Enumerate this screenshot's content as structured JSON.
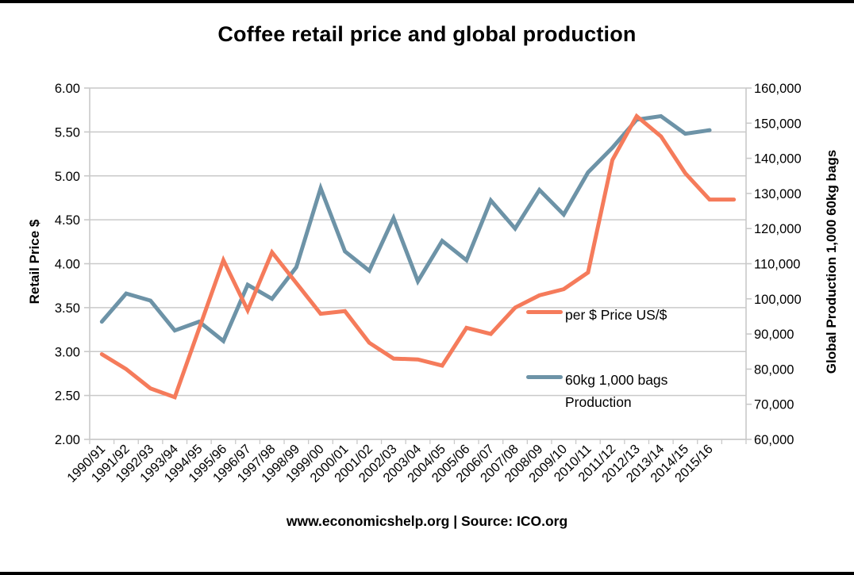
{
  "title": "Coffee retail price and global production",
  "footer": "www.economicshelp.org | Source: ICO.org",
  "colors": {
    "price_line": "#F57B5B",
    "production_line": "#6D93A7",
    "gridline": "#C9C9C9",
    "text": "#000000",
    "background": "#FFFFFF",
    "frame_border": "#000000"
  },
  "left_axis": {
    "title": "Retail Price $",
    "tick_labels": [
      "6.00",
      "5.50",
      "5.00",
      "4.50",
      "4.00",
      "3.50",
      "3.00",
      "2.50",
      "2.00"
    ],
    "min": 2.0,
    "max": 6.0,
    "step": 0.5
  },
  "right_axis": {
    "title": "Global Production 1,000 60kg bags",
    "tick_labels": [
      "160,000",
      "150,000",
      "140,000",
      "130,000",
      "120,000",
      "110,000",
      "100,000",
      "90,000",
      "80,000",
      "70,000",
      "60,000"
    ],
    "min": 60000,
    "max": 160000,
    "step": 10000
  },
  "legend": {
    "price": {
      "label": "per $ Price US/$",
      "color": "#F57B5B"
    },
    "production": {
      "label_line1": "60kg 1,000 bags",
      "label_line2": "Production",
      "color": "#6D93A7"
    }
  },
  "chart_data": {
    "type": "line",
    "title": "Coffee retail price and global production",
    "categories": [
      "1990/91",
      "1991/92",
      "1992/93",
      "1993/94",
      "1994/95",
      "1995/96",
      "1996/97",
      "1997/98",
      "1998/99",
      "1999/00",
      "2000/01",
      "2001/02",
      "2002/03",
      "2003/04",
      "2004/05",
      "2005/06",
      "2006/07",
      "2007/08",
      "2008/09",
      "2009/10",
      "2010/11",
      "2011/12",
      "2012/13",
      "2013/14",
      "2014/15",
      "2015/16"
    ],
    "series": [
      {
        "name": "per $ Price US/$",
        "axis": "left",
        "color": "#F57B5B",
        "values": [
          2.97,
          2.8,
          2.58,
          2.48,
          3.26,
          4.04,
          3.47,
          4.13,
          3.78,
          3.43,
          3.46,
          3.1,
          2.92,
          2.91,
          2.84,
          3.27,
          3.2,
          3.5,
          3.64,
          3.71,
          3.9,
          5.18,
          5.68,
          5.45,
          5.03,
          4.73
        ]
      },
      {
        "name": "60kg 1,000 bags Production",
        "axis": "right",
        "color": "#6D93A7",
        "values": [
          93500,
          101500,
          99500,
          91000,
          93500,
          88000,
          104000,
          100000,
          109000,
          131500,
          113500,
          108000,
          123000,
          105000,
          116500,
          111000,
          128000,
          120000,
          131000,
          124000,
          136000,
          143000,
          151000,
          152000,
          147000,
          148000
        ]
      }
    ],
    "left_axis_label": "Retail Price $",
    "right_axis_label": "Global Production 1,000 60kg bags",
    "left_axis_range": [
      2.0,
      6.0
    ],
    "right_axis_range": [
      60000,
      160000
    ],
    "grid": true,
    "legend_position": "inside-right",
    "x_slots": 27,
    "price_line_extends_one_extra_flat_slot": true,
    "source_note": "www.economicshelp.org | Source: ICO.org"
  }
}
